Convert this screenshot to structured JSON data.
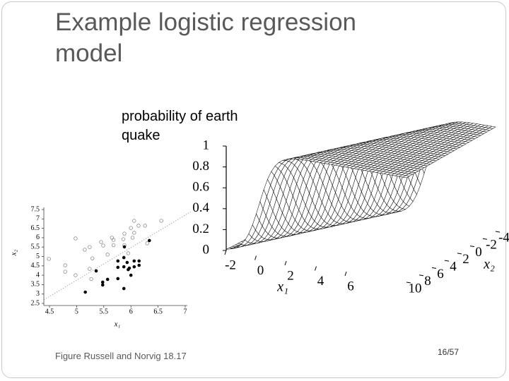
{
  "title": "Example logistic regression model",
  "annotation": "probability of earth quake",
  "caption": "Figure Russell and Norvig 18.17",
  "page_number": "16/57",
  "chart_data": [
    {
      "type": "scatter",
      "x_label": "x₁",
      "y_label": "x₂",
      "xlim": [
        4.5,
        7
      ],
      "ylim": [
        2.5,
        7.5
      ],
      "xticks": [
        4.5,
        5,
        5.5,
        6,
        6.5,
        7
      ],
      "yticks": [
        2.5,
        3,
        3.5,
        4,
        4.5,
        5,
        5.5,
        6,
        6.5,
        7,
        7.5
      ],
      "series": [
        {
          "marker": "open",
          "color": "#8a8a8a",
          "x": [
            4.49,
            4.98,
            4.79,
            4.79,
            4.98,
            5.15,
            5.24,
            5.29,
            5.45,
            5.49,
            5.57,
            5.65,
            5.68,
            5.68,
            5.86,
            5.88,
            5.88,
            5.95,
            6.0,
            6.06,
            6.06,
            6.14,
            6.26,
            6.3,
            6.56,
            5.27,
            5.24,
            6.03
          ],
          "values": [
            4.87,
            5.96,
            4.53,
            4.19,
            4.0,
            5.36,
            5.5,
            4.9,
            5.77,
            5.58,
            5.1,
            6.0,
            5.88,
            5.6,
            5.92,
            6.22,
            5.6,
            5.17,
            6.52,
            6.9,
            6.26,
            6.64,
            6.64,
            5.7,
            6.9,
            3.8,
            4.34,
            6.0
          ]
        },
        {
          "marker": "filled",
          "color": "#000000",
          "x": [
            5.16,
            5.36,
            5.48,
            5.57,
            5.48,
            5.76,
            5.76,
            5.76,
            5.87,
            5.87,
            5.87,
            5.88,
            5.93,
            5.97,
            6.0,
            6.06,
            6.06,
            6.15,
            6.15,
            6.34,
            5.95
          ],
          "values": [
            3.1,
            4.23,
            3.48,
            3.78,
            3.63,
            4.76,
            4.42,
            3.82,
            4.94,
            4.45,
            3.29,
            5.51,
            4.68,
            4.38,
            4.0,
            4.76,
            4.45,
            4.76,
            4.53,
            5.85,
            4.3
          ]
        }
      ]
    },
    {
      "type": "surface",
      "x_label": "x₁",
      "y_label": "x₂",
      "xlim": [
        -2,
        10
      ],
      "ylim": [
        -4,
        10
      ],
      "zlim": [
        0,
        1
      ],
      "xticks": [
        -2,
        0,
        2,
        4,
        6
      ],
      "yticks": [
        -4,
        -2,
        0,
        2,
        4,
        6,
        8,
        10
      ],
      "zticks": [
        0,
        0.2,
        0.4,
        0.6,
        0.8,
        1
      ]
    }
  ]
}
